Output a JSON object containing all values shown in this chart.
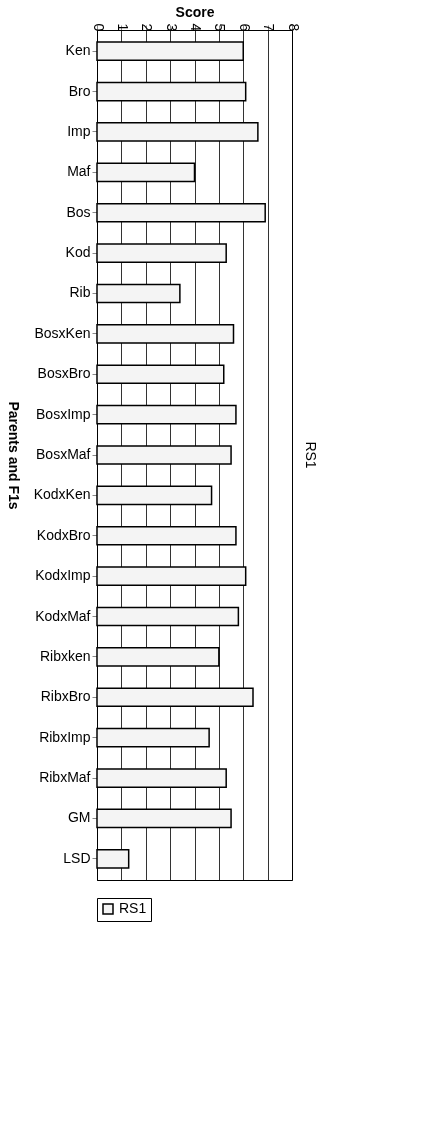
{
  "chart_data": {
    "type": "bar",
    "orientation": "horizontal",
    "title": "RS1",
    "xlabel": "Score",
    "ylabel": "Parents and F1s",
    "categories": [
      "Ken",
      "Bro",
      "Imp",
      "Maf",
      "Bos",
      "Kod",
      "Rib",
      "BosxKen",
      "BosxBro",
      "BosxImp",
      "BosxMaf",
      "KodxKen",
      "KodxBro",
      "KodxImp",
      "KodxMaf",
      "Ribxken",
      "RibxBro",
      "RibxImp",
      "RibxMaf",
      "GM",
      "LSD"
    ],
    "series": [
      {
        "name": "RS1",
        "color": "#f4f4f4",
        "values": [
          6.0,
          6.1,
          6.6,
          4.0,
          6.9,
          5.3,
          3.4,
          5.6,
          5.2,
          5.7,
          5.5,
          4.7,
          5.7,
          6.1,
          5.8,
          5.0,
          6.4,
          4.6,
          5.3,
          5.5,
          1.3
        ]
      }
    ],
    "xlim": [
      0,
      8
    ],
    "xticks": [
      0,
      1,
      2,
      3,
      4,
      5,
      6,
      7,
      8
    ],
    "grid": "x",
    "legend": "bottom"
  }
}
